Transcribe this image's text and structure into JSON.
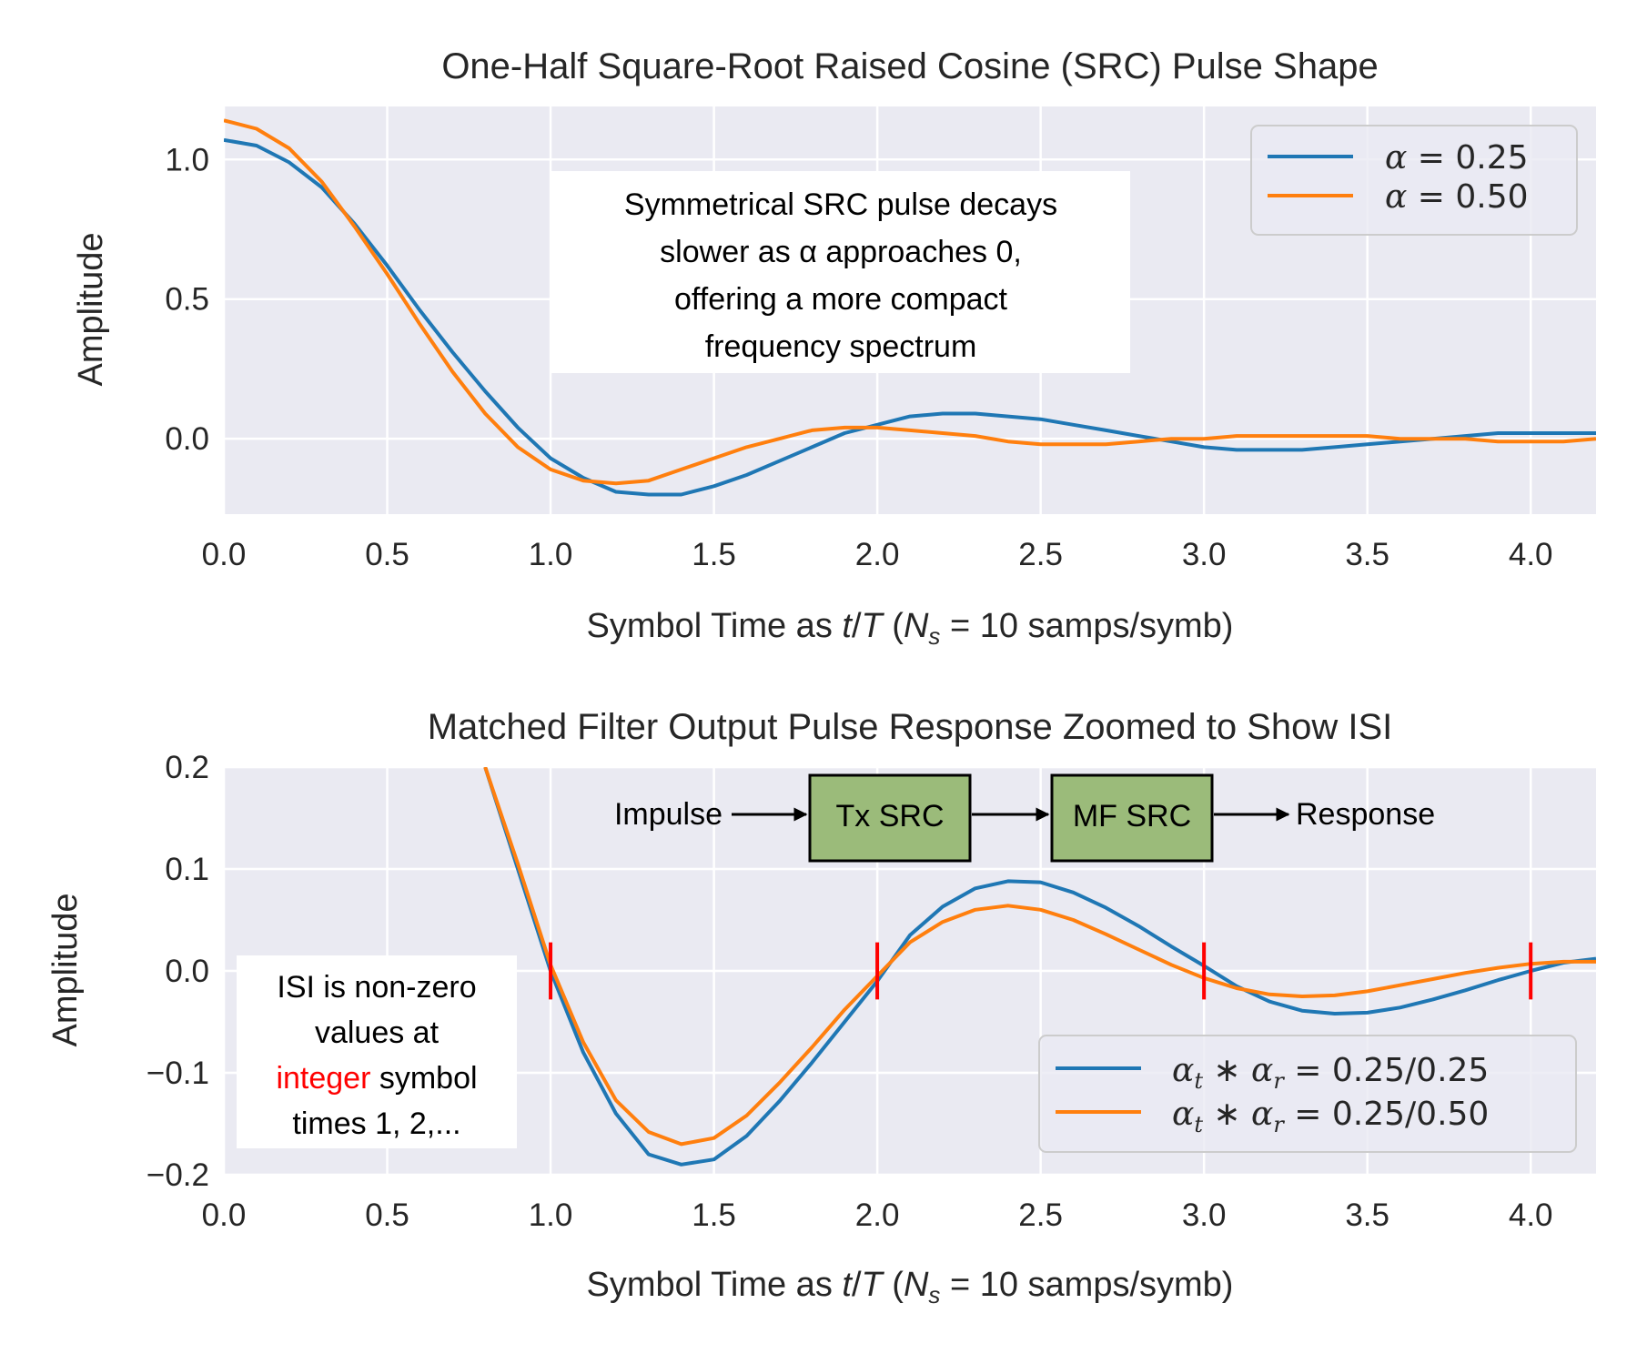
{
  "colors": {
    "blue": "#1f77b4",
    "orange": "#ff7f0e",
    "panel_bg": "#eaeaf2",
    "grid": "#ffffff",
    "isi_marker": "#ff0000",
    "block_fill": "#9bbb7a"
  },
  "chart_data": [
    {
      "type": "line",
      "title": "One-Half Square-Root Raised Cosine (SRC) Pulse Shape",
      "xlabel": "Symbol Time as t/T (N_s = 10 samps/symb)",
      "ylabel": "Amplitude",
      "xlim": [
        0,
        4.2
      ],
      "ylim": [
        -0.27,
        1.19
      ],
      "xticks": [
        "0.0",
        "0.5",
        "1.0",
        "1.5",
        "2.0",
        "2.5",
        "3.0",
        "3.5",
        "4.0"
      ],
      "yticks": [
        "0.0",
        "0.5",
        "1.0"
      ],
      "grid": true,
      "legend_position": "top-right",
      "x": [
        0.0,
        0.1,
        0.2,
        0.3,
        0.4,
        0.5,
        0.6,
        0.7,
        0.8,
        0.9,
        1.0,
        1.1,
        1.2,
        1.3,
        1.4,
        1.5,
        1.6,
        1.7,
        1.8,
        1.9,
        2.0,
        2.1,
        2.2,
        2.3,
        2.4,
        2.5,
        2.6,
        2.7,
        2.8,
        2.9,
        3.0,
        3.1,
        3.2,
        3.3,
        3.4,
        3.5,
        3.6,
        3.7,
        3.8,
        3.9,
        4.0,
        4.1,
        4.2
      ],
      "series": [
        {
          "name": "α = 0.25",
          "values": [
            1.07,
            1.05,
            0.99,
            0.9,
            0.77,
            0.62,
            0.46,
            0.31,
            0.17,
            0.04,
            -0.07,
            -0.14,
            -0.19,
            -0.2,
            -0.2,
            -0.17,
            -0.13,
            -0.08,
            -0.03,
            0.02,
            0.05,
            0.08,
            0.09,
            0.09,
            0.08,
            0.07,
            0.05,
            0.03,
            0.01,
            -0.01,
            -0.03,
            -0.04,
            -0.04,
            -0.04,
            -0.03,
            -0.02,
            -0.01,
            0.0,
            0.01,
            0.02,
            0.02,
            0.02,
            0.02
          ]
        },
        {
          "name": "α = 0.50",
          "values": [
            1.14,
            1.11,
            1.04,
            0.92,
            0.76,
            0.59,
            0.41,
            0.24,
            0.09,
            -0.03,
            -0.11,
            -0.15,
            -0.16,
            -0.15,
            -0.11,
            -0.07,
            -0.03,
            0.0,
            0.03,
            0.04,
            0.04,
            0.03,
            0.02,
            0.01,
            -0.01,
            -0.02,
            -0.02,
            -0.02,
            -0.01,
            0.0,
            0.0,
            0.01,
            0.01,
            0.01,
            0.01,
            0.01,
            0.0,
            0.0,
            0.0,
            -0.01,
            -0.01,
            -0.01,
            0.0
          ]
        }
      ],
      "annotation": [
        "Symmetrical SRC pulse decays",
        "slower as α approaches 0,",
        "offering a more compact",
        "frequency spectrum"
      ]
    },
    {
      "type": "line",
      "title": "Matched Filter Output Pulse Response Zoomed to Show ISI",
      "xlabel": "Symbol Time as t/T (N_s = 10 samps/symb)",
      "ylabel": "Amplitude",
      "xlim": [
        0,
        4.2
      ],
      "ylim": [
        -0.2,
        0.2
      ],
      "xticks": [
        "0.0",
        "0.5",
        "1.0",
        "1.5",
        "2.0",
        "2.5",
        "3.0",
        "3.5",
        "4.0"
      ],
      "yticks": [
        "0.2",
        "0.1",
        "0.0",
        "−0.1",
        "−0.2"
      ],
      "grid": true,
      "legend_position": "lower-right",
      "x": [
        0.8,
        0.9,
        1.0,
        1.1,
        1.2,
        1.3,
        1.4,
        1.5,
        1.6,
        1.7,
        1.8,
        1.9,
        2.0,
        2.1,
        2.2,
        2.3,
        2.4,
        2.5,
        2.6,
        2.7,
        2.8,
        2.9,
        3.0,
        3.1,
        3.2,
        3.3,
        3.4,
        3.5,
        3.6,
        3.7,
        3.8,
        3.9,
        4.0,
        4.1,
        4.2
      ],
      "series": [
        {
          "name": "α_t ∗ α_r = 0.25/0.25",
          "values": [
            0.2,
            0.1,
            0.0,
            -0.08,
            -0.14,
            -0.18,
            -0.19,
            -0.185,
            -0.162,
            -0.128,
            -0.09,
            -0.05,
            -0.01,
            0.035,
            0.063,
            0.081,
            0.088,
            0.087,
            0.077,
            0.062,
            0.044,
            0.024,
            0.005,
            -0.015,
            -0.03,
            -0.039,
            -0.042,
            -0.041,
            -0.036,
            -0.028,
            -0.019,
            -0.009,
            0.0,
            0.008,
            0.012
          ]
        },
        {
          "name": "α_t ∗ α_r = 0.25/0.50",
          "values": [
            0.2,
            0.105,
            0.006,
            -0.07,
            -0.127,
            -0.158,
            -0.17,
            -0.164,
            -0.142,
            -0.11,
            -0.075,
            -0.038,
            -0.005,
            0.028,
            0.048,
            0.06,
            0.064,
            0.06,
            0.05,
            0.036,
            0.021,
            0.006,
            -0.007,
            -0.017,
            -0.023,
            -0.025,
            -0.024,
            -0.02,
            -0.014,
            -0.008,
            -0.002,
            0.003,
            0.007,
            0.009,
            0.009
          ]
        }
      ],
      "isi_markers_x": [
        1,
        2,
        3,
        4
      ],
      "block_diagram": {
        "input": "Impulse",
        "blocks": [
          "Tx SRC",
          "MF SRC"
        ],
        "output": "Response"
      },
      "annotation": {
        "line1": "ISI is non-zero",
        "line2": "values at",
        "highlight": "integer",
        "line3_rest": " symbol",
        "line4": "times 1, 2,..."
      }
    }
  ],
  "legend_math": {
    "top_1": {
      "sym": "α",
      "eq": " = ",
      "val": "0.25"
    },
    "top_2": {
      "sym": "α",
      "eq": " = ",
      "val": "0.50"
    },
    "bot_1": {
      "val": "0.25/0.25"
    },
    "bot_2": {
      "val": "0.25/0.50"
    }
  },
  "axis_label_parts": {
    "prefix": "Symbol Time as ",
    "t": "t",
    "slash": "/",
    "T": "T",
    "open": " (",
    "N": "N",
    "s": "s",
    "rest": " = 10 samps/symb)"
  }
}
